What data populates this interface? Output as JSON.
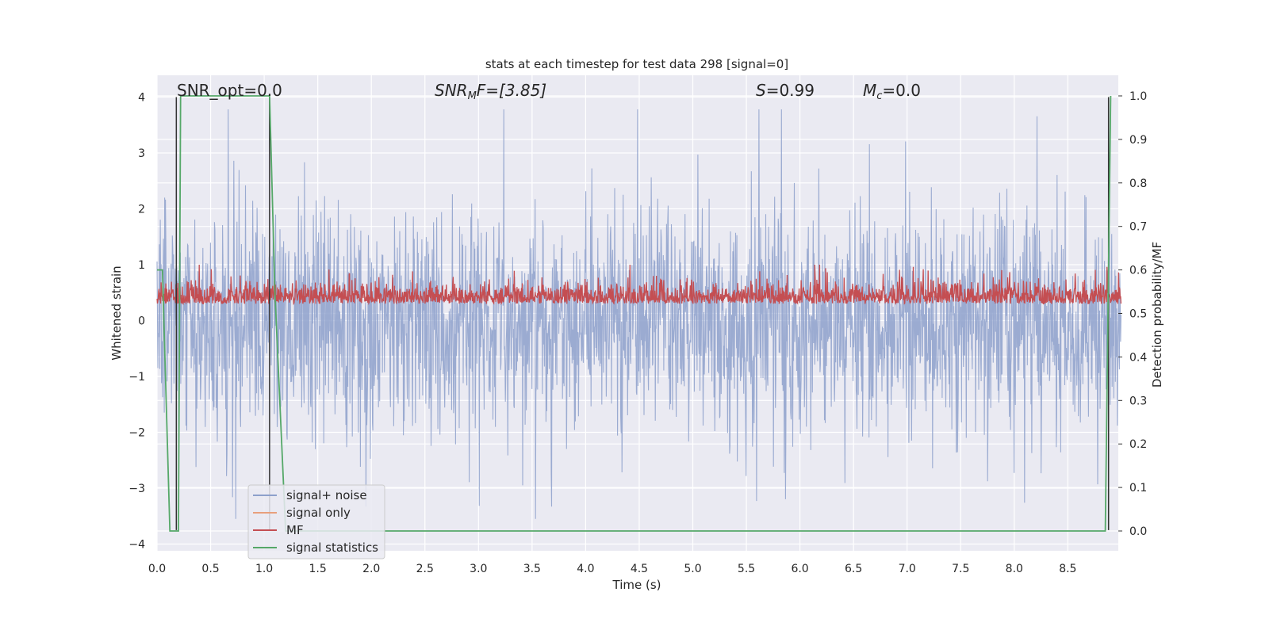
{
  "chart_data": {
    "type": "line",
    "title": "stats at each timestep for test data 298 [signal=0]",
    "xlabel": "Time (s)",
    "ylabel": "Whitened strain",
    "ylabel_right": "Detection probability/MF",
    "xlim": [
      0.0,
      9.0
    ],
    "ylim": [
      -4.25,
      4.4
    ],
    "ylim_right": [
      -0.045,
      1.03
    ],
    "xticks": [
      "0.0",
      "0.5",
      "1.0",
      "1.5",
      "2.0",
      "2.5",
      "3.0",
      "3.5",
      "4.0",
      "4.5",
      "5.0",
      "5.5",
      "6.0",
      "6.5",
      "7.0",
      "7.5",
      "8.0",
      "8.5"
    ],
    "yticks": [
      "4",
      "3",
      "2",
      "1",
      "0",
      "−1",
      "−2",
      "−3",
      "−4"
    ],
    "yticks_right": [
      "1.0",
      "0.9",
      "0.8",
      "0.7",
      "0.6",
      "0.5",
      "0.4",
      "0.3",
      "0.2",
      "0.1",
      "0.0"
    ],
    "annotations": {
      "snr_opt": "SNR_opt=0.0",
      "snr_mf_italic": "SNR",
      "snr_mf_sub": "M",
      "snr_mf_rest": "F=[3.85]",
      "s_italic": "S",
      "s_rest": "=0.99",
      "mc_italic": "M",
      "mc_sub": "c",
      "mc_rest": "=0.0"
    },
    "legend": {
      "position": "lower-left",
      "entries": [
        "signal+ noise",
        "signal only",
        "MF",
        "signal statistics"
      ]
    },
    "grid": true,
    "series": [
      {
        "name": "signal+ noise",
        "color": "#8da0cb",
        "axis": "left",
        "description_values": {
          "typical_range": [
            -2.5,
            2.7
          ],
          "peak": 3.78,
          "trough": -3.55
        }
      },
      {
        "name": "signal only",
        "color": "#e8a07c",
        "axis": "left",
        "values": []
      },
      {
        "name": "MF",
        "color": "#c44e52",
        "axis": "left",
        "description_values": {
          "typical_range": [
            0.0,
            0.8
          ],
          "peak": 1.0
        }
      },
      {
        "name": "signal statistics",
        "color": "#55a868",
        "axis": "right",
        "x": [
          0.0,
          0.05,
          0.12,
          0.2,
          0.22,
          0.25,
          1.05,
          1.1,
          1.2,
          8.85,
          8.9
        ],
        "y": [
          0.6,
          0.6,
          0.0,
          0.0,
          1.0,
          1.0,
          1.0,
          0.55,
          0.0,
          0.0,
          1.0
        ]
      },
      {
        "name": "black markers",
        "color": "#333333",
        "axis": "left",
        "x": [
          0.18,
          1.05,
          8.88
        ],
        "y_top": [
          4.0,
          4.0,
          4.0
        ],
        "y_bottom": [
          -3.75,
          -3.75,
          -3.75
        ]
      }
    ]
  }
}
